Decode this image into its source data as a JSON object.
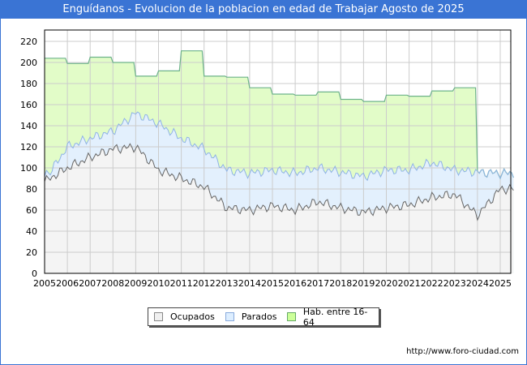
{
  "header": {
    "title": "Enguídanos - Evolucion de la poblacion en edad de Trabajar Agosto de 2025"
  },
  "footer": {
    "url": "http://www.foro-ciudad.com"
  },
  "legend": [
    {
      "label": "Ocupados",
      "color": "#f4f4f4",
      "border": "#888888"
    },
    {
      "label": "Parados",
      "color": "#ddeeff",
      "border": "#88aadd"
    },
    {
      "label": "Hab. entre 16-64",
      "color": "#e0ffc0",
      "border": "#66aa66"
    }
  ],
  "colors": {
    "title_bg": "#3a74d4",
    "hab_fill": "#e2fcc8",
    "hab_line": "#6db38a",
    "parados_fill": "#e3f0fd",
    "parados_line": "#8fb3e6",
    "ocupados_fill": "#f4f4f4",
    "ocupados_line": "#666666",
    "grid": "#cccccc"
  },
  "chart_data": {
    "type": "area",
    "title": "Enguídanos - Evolucion de la poblacion en edad de Trabajar Agosto de 2025",
    "xlabel": "",
    "ylabel": "",
    "ylim": [
      0,
      230
    ],
    "yticks": [
      0,
      20,
      40,
      60,
      80,
      100,
      120,
      140,
      160,
      180,
      200,
      220
    ],
    "categories": [
      "2005",
      "2006",
      "2007",
      "2008",
      "2009",
      "2010",
      "2011",
      "2012",
      "2013",
      "2014",
      "2015",
      "2016",
      "2017",
      "2018",
      "2019",
      "2020",
      "2021",
      "2022",
      "2023",
      "2024",
      "2025"
    ],
    "grid": true,
    "legend_position": "bottom",
    "series": [
      {
        "name": "Hab. entre 16-64",
        "values": [
          204,
          199,
          205,
          200,
          187,
          192,
          211,
          187,
          186,
          176,
          170,
          169,
          172,
          165,
          163,
          169,
          168,
          173,
          176,
          null,
          null
        ]
      },
      {
        "name": "Parados",
        "values": [
          88,
          120,
          128,
          135,
          152,
          142,
          128,
          118,
          98,
          95,
          98,
          95,
          100,
          96,
          92,
          98,
          98,
          105,
          98,
          96,
          95
        ]
      },
      {
        "name": "Ocupados",
        "values": [
          87,
          100,
          110,
          118,
          120,
          98,
          90,
          82,
          62,
          60,
          64,
          60,
          68,
          62,
          58,
          62,
          65,
          72,
          75,
          55,
          80
        ]
      }
    ]
  }
}
